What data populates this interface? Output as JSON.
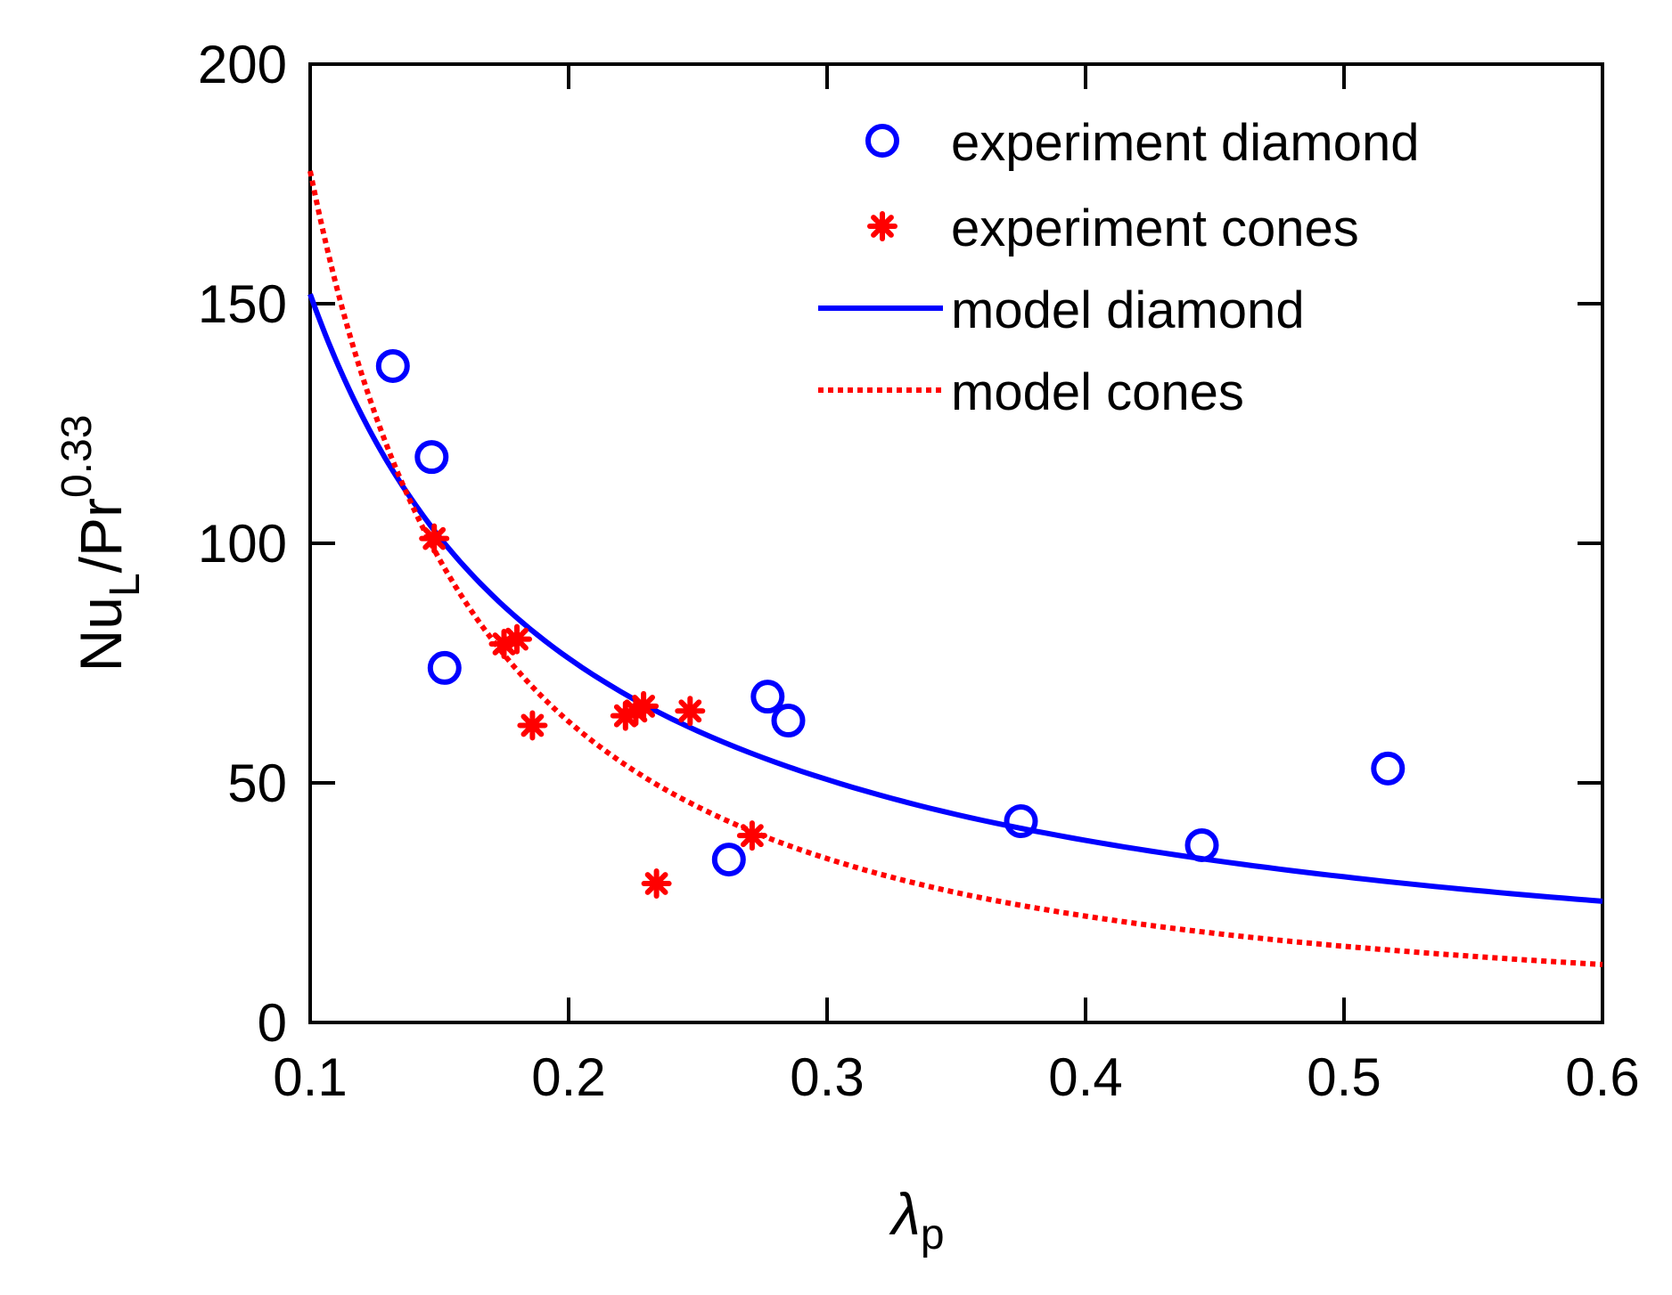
{
  "chart_data": {
    "type": "scatter",
    "xlabel": "λ",
    "xlabel_sub": "p",
    "ylabel": "Nu",
    "ylabel_sub": "L",
    "ylabel_mid": "/Pr",
    "ylabel_sup": "0.33",
    "xlim": [
      0.1,
      0.6
    ],
    "ylim": [
      0,
      200
    ],
    "xticks": [
      0.1,
      0.2,
      0.3,
      0.4,
      0.5,
      0.6
    ],
    "xtick_labels": [
      "0.1",
      "0.2",
      "0.3",
      "0.4",
      "0.5",
      "0.6"
    ],
    "yticks": [
      0,
      50,
      100,
      150,
      200
    ],
    "ytick_labels": [
      "0",
      "50",
      "100",
      "150",
      "200"
    ],
    "grid": false,
    "legend_position": "top-right",
    "colors": {
      "diamond": "#0000ff",
      "cones": "#ff0000",
      "axes": "#000000"
    },
    "series": [
      {
        "name": "experiment diamond",
        "kind": "scatter",
        "marker": "circle",
        "color": "#0000ff",
        "x": [
          0.132,
          0.147,
          0.152,
          0.262,
          0.277,
          0.285,
          0.375,
          0.445,
          0.517
        ],
        "y": [
          137,
          118,
          74,
          34,
          68,
          63,
          42,
          37,
          53
        ]
      },
      {
        "name": "experiment cones",
        "kind": "scatter",
        "marker": "asterisk",
        "color": "#ff0000",
        "x": [
          0.148,
          0.175,
          0.18,
          0.186,
          0.222,
          0.226,
          0.229,
          0.234,
          0.247,
          0.271
        ],
        "y": [
          101,
          79,
          80,
          62,
          64,
          65,
          66,
          29,
          65,
          39
        ]
      },
      {
        "name": "model diamond",
        "kind": "line",
        "style": "solid",
        "color": "#0000ff",
        "formula": "y = 15.2 * x^(-1.0)",
        "x": [
          0.1,
          0.11,
          0.12,
          0.13,
          0.14,
          0.15,
          0.17,
          0.2,
          0.25,
          0.3,
          0.35,
          0.4,
          0.45,
          0.5,
          0.55,
          0.6
        ],
        "y": [
          152,
          138.2,
          126.7,
          116.9,
          108.6,
          101.3,
          89.4,
          76,
          60.8,
          50.7,
          43.4,
          38,
          33.8,
          30.4,
          27.6,
          25.3
        ]
      },
      {
        "name": "model cones",
        "kind": "line",
        "style": "dotted",
        "color": "#ff0000",
        "formula": "y = 5.62 * x^(-1.5)",
        "x": [
          0.1,
          0.11,
          0.12,
          0.13,
          0.14,
          0.15,
          0.17,
          0.2,
          0.25,
          0.3,
          0.35,
          0.4,
          0.45,
          0.5,
          0.55,
          0.6
        ],
        "y": [
          177.7,
          154,
          135.2,
          119.9,
          107.3,
          96.7,
          80.2,
          62.8,
          45,
          34.2,
          27.1,
          22.2,
          18.6,
          15.9,
          13.8,
          12.1
        ]
      }
    ]
  }
}
